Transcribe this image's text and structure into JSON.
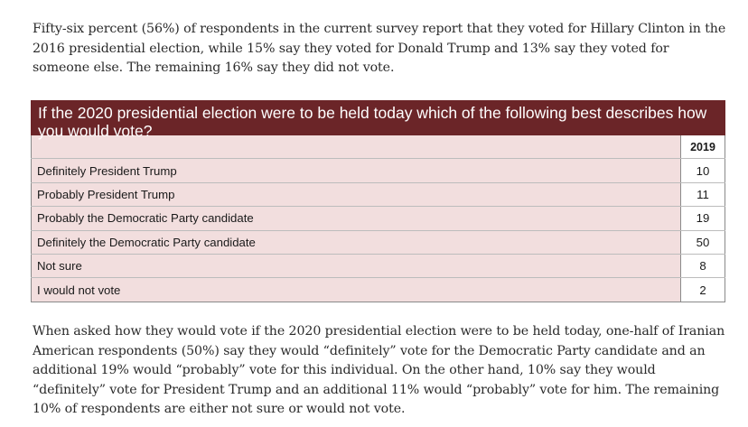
{
  "intro": "Fifty-six percent (56%) of respondents in the current survey report that they voted for Hillary Clinton in the 2016 presidential election, while 15% say they voted for Donald Trump and 13% say they voted for someone else. The remaining 16% say they did not vote.",
  "table": {
    "title": "If the 2020 presidential election were to be held today which of the following best describes how you would vote?",
    "year_header": "2019",
    "rows": [
      {
        "label": "Definitely President Trump",
        "value": "10"
      },
      {
        "label": "Probably President Trump",
        "value": "11"
      },
      {
        "label": "Probably the Democratic Party candidate",
        "value": "19"
      },
      {
        "label": "Definitely the Democratic Party candidate",
        "value": "50"
      },
      {
        "label": "Not sure",
        "value": "8"
      },
      {
        "label": "I would not vote",
        "value": "2"
      }
    ]
  },
  "outro": "When asked how they would vote if the 2020 presidential election were to be held today, one-half of Iranian American respondents (50%) say they would “definitely” vote for the Democratic Party candidate and an additional 19% would “probably” vote for this individual. On the other hand, 10% say they would “definitely” vote for President Trump and an additional 11% would “probably” vote for him. The remaining 10% of respondents are either not sure or would not vote."
}
